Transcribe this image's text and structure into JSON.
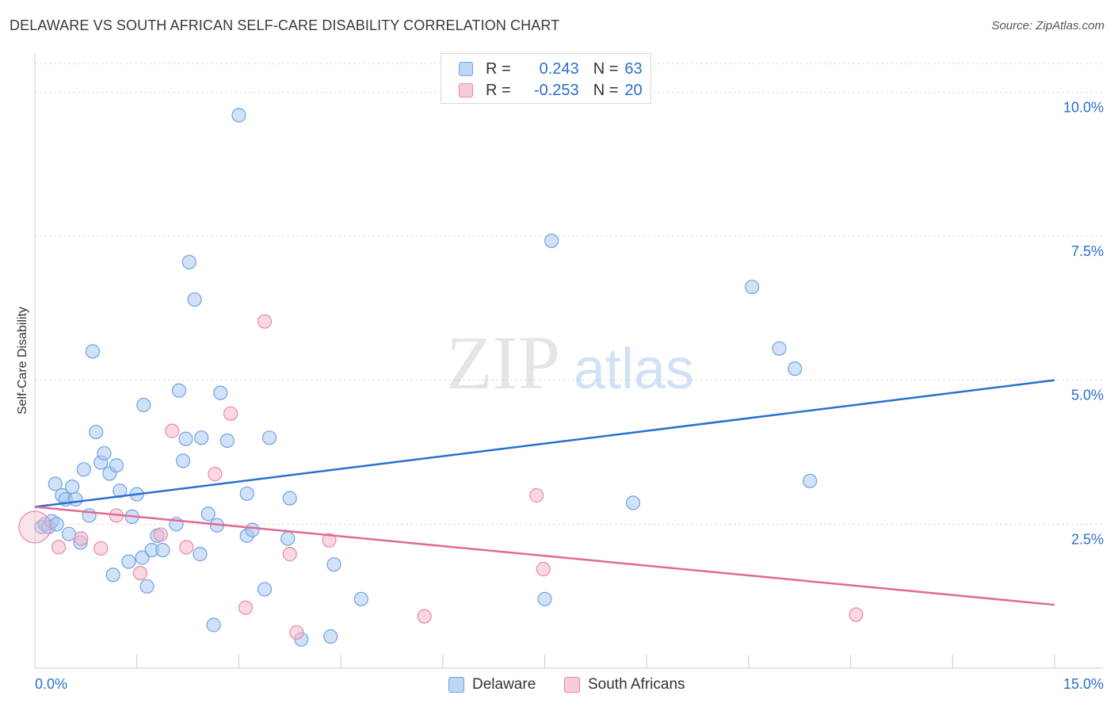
{
  "header": {
    "title": "DELAWARE VS SOUTH AFRICAN SELF-CARE DISABILITY CORRELATION CHART",
    "source": "Source: ZipAtlas.com"
  },
  "watermark": {
    "zip": "ZIP",
    "atlas": "atlas"
  },
  "legend": {
    "rows": [
      {
        "r_label": "R =",
        "r_value": "0.243",
        "n_label": "N =",
        "n_value": "63",
        "color": "#a9c9f2"
      },
      {
        "r_label": "R =",
        "r_value": "-0.253",
        "n_label": "N =",
        "n_value": "20",
        "color": "#f5b8cb"
      }
    ]
  },
  "bottom_legend": {
    "delaware": "Delaware",
    "south_africans": "South Africans"
  },
  "chart_data": {
    "type": "scatter",
    "ylabel": "Self-Care Disability",
    "xlim": [
      0,
      15
    ],
    "ylim": [
      0,
      10.5
    ],
    "x_tick_labels": [
      "0.0%",
      "15.0%"
    ],
    "y_ticks": [
      {
        "value": 2.5,
        "label": "2.5%"
      },
      {
        "value": 5.0,
        "label": "5.0%"
      },
      {
        "value": 7.5,
        "label": "7.5%"
      },
      {
        "value": 10.0,
        "label": "10.0%"
      }
    ],
    "grid": "horizontal dashed",
    "colors": {
      "delaware_fill": "#a9c9f2",
      "delaware_stroke": "#6fa3e3",
      "delaware_line": "#2a6fd1",
      "sa_fill": "#f5b8cb",
      "sa_stroke": "#e889a7",
      "sa_line": "#e06a93"
    },
    "series": [
      {
        "name": "Delaware",
        "trend": [
          [
            0,
            2.8
          ],
          [
            15,
            5.0
          ]
        ],
        "points": [
          [
            0.1,
            2.45
          ],
          [
            0.15,
            2.5
          ],
          [
            0.2,
            2.45
          ],
          [
            0.25,
            2.55
          ],
          [
            0.3,
            3.2
          ],
          [
            0.32,
            2.5
          ],
          [
            0.4,
            3.0
          ],
          [
            0.45,
            2.93
          ],
          [
            0.5,
            2.33
          ],
          [
            0.55,
            3.15
          ],
          [
            0.6,
            2.93
          ],
          [
            0.67,
            2.18
          ],
          [
            0.72,
            3.45
          ],
          [
            0.8,
            2.65
          ],
          [
            0.85,
            5.5
          ],
          [
            0.9,
            4.1
          ],
          [
            0.97,
            3.57
          ],
          [
            1.02,
            3.73
          ],
          [
            1.1,
            3.38
          ],
          [
            1.15,
            1.62
          ],
          [
            1.2,
            3.52
          ],
          [
            1.25,
            3.08
          ],
          [
            1.38,
            1.85
          ],
          [
            1.43,
            2.63
          ],
          [
            1.5,
            3.02
          ],
          [
            1.58,
            1.92
          ],
          [
            1.6,
            4.57
          ],
          [
            1.65,
            1.42
          ],
          [
            1.72,
            2.05
          ],
          [
            1.8,
            2.3
          ],
          [
            1.88,
            2.05
          ],
          [
            2.08,
            2.5
          ],
          [
            2.12,
            4.82
          ],
          [
            2.18,
            3.6
          ],
          [
            2.22,
            3.98
          ],
          [
            2.27,
            7.05
          ],
          [
            2.35,
            6.4
          ],
          [
            2.43,
            1.98
          ],
          [
            2.45,
            4.0
          ],
          [
            2.55,
            2.68
          ],
          [
            2.63,
            0.75
          ],
          [
            2.68,
            2.48
          ],
          [
            2.73,
            4.78
          ],
          [
            2.83,
            3.95
          ],
          [
            3.0,
            9.6
          ],
          [
            3.12,
            2.3
          ],
          [
            3.12,
            3.03
          ],
          [
            3.2,
            2.4
          ],
          [
            3.38,
            1.37
          ],
          [
            3.45,
            4.0
          ],
          [
            3.72,
            2.25
          ],
          [
            3.75,
            2.95
          ],
          [
            3.92,
            0.5
          ],
          [
            4.35,
            0.55
          ],
          [
            4.4,
            1.8
          ],
          [
            4.8,
            1.2
          ],
          [
            7.5,
            1.2
          ],
          [
            7.6,
            7.42
          ],
          [
            8.8,
            2.87
          ],
          [
            10.55,
            6.62
          ],
          [
            10.95,
            5.55
          ],
          [
            11.18,
            5.2
          ],
          [
            11.4,
            3.25
          ]
        ]
      },
      {
        "name": "South Africans",
        "trend": [
          [
            0,
            2.8
          ],
          [
            15,
            1.1
          ]
        ],
        "points": [
          [
            0.0,
            2.45
          ],
          [
            0.35,
            2.1
          ],
          [
            0.68,
            2.25
          ],
          [
            0.97,
            2.08
          ],
          [
            1.2,
            2.65
          ],
          [
            1.55,
            1.65
          ],
          [
            1.85,
            2.32
          ],
          [
            2.02,
            4.12
          ],
          [
            2.23,
            2.1
          ],
          [
            2.65,
            3.37
          ],
          [
            2.88,
            4.42
          ],
          [
            3.1,
            1.05
          ],
          [
            3.38,
            6.02
          ],
          [
            3.75,
            1.98
          ],
          [
            3.85,
            0.62
          ],
          [
            4.33,
            2.22
          ],
          [
            5.73,
            0.9
          ],
          [
            7.38,
            3.0
          ],
          [
            7.48,
            1.72
          ],
          [
            12.08,
            0.93
          ]
        ]
      }
    ]
  }
}
